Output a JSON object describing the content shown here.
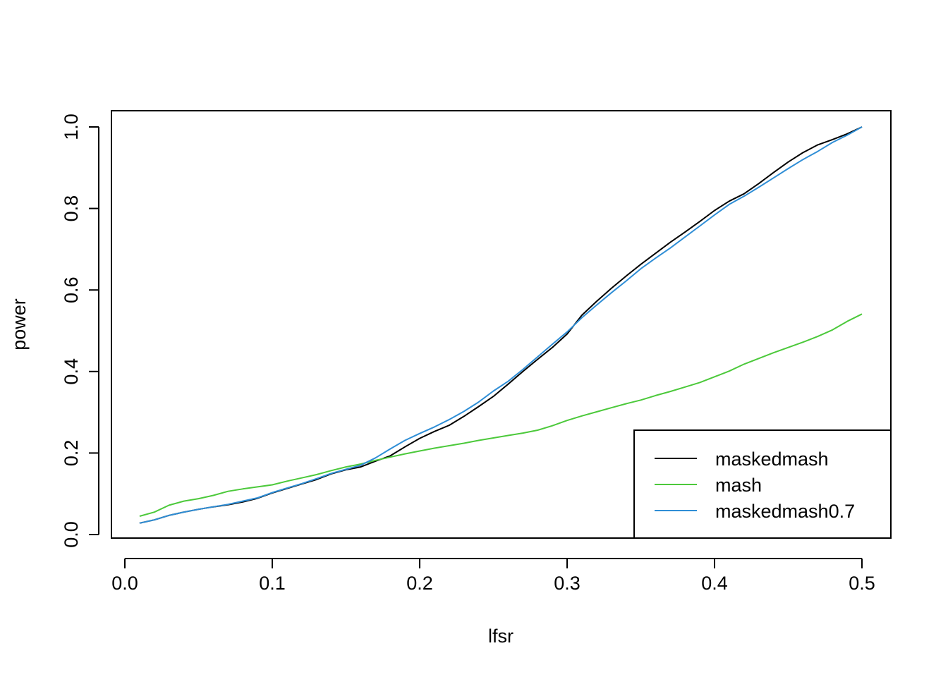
{
  "chart_data": {
    "type": "line",
    "title": "",
    "xlabel": "lfsr",
    "ylabel": "power",
    "xlim": [
      0.0,
      0.5
    ],
    "ylim": [
      0.0,
      1.0
    ],
    "x_ticks": [
      "0.0",
      "0.1",
      "0.2",
      "0.3",
      "0.4",
      "0.5"
    ],
    "y_ticks": [
      "0.0",
      "0.2",
      "0.4",
      "0.6",
      "0.8",
      "1.0"
    ],
    "grid": false,
    "legend_position": "bottom-right",
    "x": [
      0.01,
      0.02,
      0.03,
      0.04,
      0.05,
      0.06,
      0.07,
      0.08,
      0.09,
      0.1,
      0.11,
      0.12,
      0.13,
      0.14,
      0.15,
      0.16,
      0.17,
      0.18,
      0.19,
      0.2,
      0.21,
      0.22,
      0.23,
      0.24,
      0.25,
      0.26,
      0.27,
      0.28,
      0.29,
      0.3,
      0.31,
      0.32,
      0.33,
      0.34,
      0.35,
      0.36,
      0.37,
      0.38,
      0.39,
      0.4,
      0.41,
      0.42,
      0.43,
      0.44,
      0.45,
      0.46,
      0.47,
      0.48,
      0.49,
      0.5
    ],
    "series": [
      {
        "name": "maskedmash",
        "color": "#000000",
        "values": [
          0.028,
          0.036,
          0.047,
          0.055,
          0.062,
          0.068,
          0.073,
          0.08,
          0.089,
          0.102,
          0.113,
          0.124,
          0.135,
          0.149,
          0.159,
          0.166,
          0.18,
          0.193,
          0.215,
          0.236,
          0.253,
          0.268,
          0.29,
          0.314,
          0.339,
          0.369,
          0.4,
          0.43,
          0.459,
          0.492,
          0.538,
          0.572,
          0.604,
          0.634,
          0.663,
          0.69,
          0.717,
          0.742,
          0.768,
          0.795,
          0.818,
          0.836,
          0.861,
          0.888,
          0.914,
          0.937,
          0.956,
          0.969,
          0.983,
          1.0
        ]
      },
      {
        "name": "mash",
        "color": "#4cc93b",
        "values": [
          0.045,
          0.055,
          0.072,
          0.082,
          0.088,
          0.096,
          0.106,
          0.112,
          0.117,
          0.122,
          0.131,
          0.139,
          0.147,
          0.157,
          0.166,
          0.173,
          0.182,
          0.19,
          0.198,
          0.205,
          0.212,
          0.218,
          0.224,
          0.231,
          0.237,
          0.243,
          0.249,
          0.256,
          0.267,
          0.28,
          0.291,
          0.301,
          0.311,
          0.321,
          0.33,
          0.341,
          0.351,
          0.362,
          0.373,
          0.387,
          0.401,
          0.418,
          0.432,
          0.446,
          0.459,
          0.472,
          0.486,
          0.502,
          0.523,
          0.541
        ]
      },
      {
        "name": "maskedmash0.7",
        "color": "#2f8ed6",
        "values": [
          0.028,
          0.036,
          0.047,
          0.055,
          0.062,
          0.068,
          0.074,
          0.082,
          0.09,
          0.103,
          0.114,
          0.125,
          0.137,
          0.15,
          0.16,
          0.17,
          0.188,
          0.21,
          0.231,
          0.248,
          0.264,
          0.282,
          0.302,
          0.325,
          0.352,
          0.376,
          0.405,
          0.436,
          0.467,
          0.497,
          0.532,
          0.563,
          0.593,
          0.622,
          0.652,
          0.678,
          0.703,
          0.73,
          0.757,
          0.784,
          0.81,
          0.83,
          0.852,
          0.875,
          0.898,
          0.92,
          0.94,
          0.962,
          0.98,
          1.0
        ]
      }
    ]
  }
}
